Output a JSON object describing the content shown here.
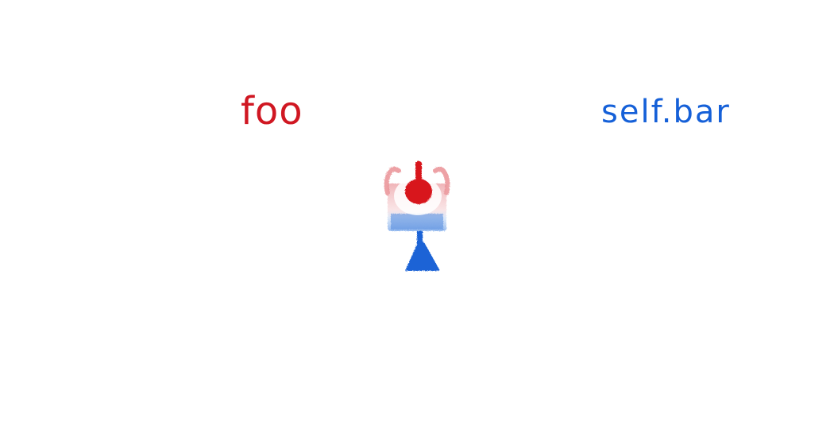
{
  "labels": {
    "left": "foo",
    "right": "self.bar"
  },
  "colors": {
    "left_label": "#d01722",
    "right_label": "#1560d8",
    "red_fill": "#d8161f",
    "red_soft": "#e8898f",
    "blue_fill": "#1a63d6",
    "blue_soft": "#6a9ee8"
  },
  "icons": {
    "sketch": "red-ball-over-blue-stand-icon"
  }
}
